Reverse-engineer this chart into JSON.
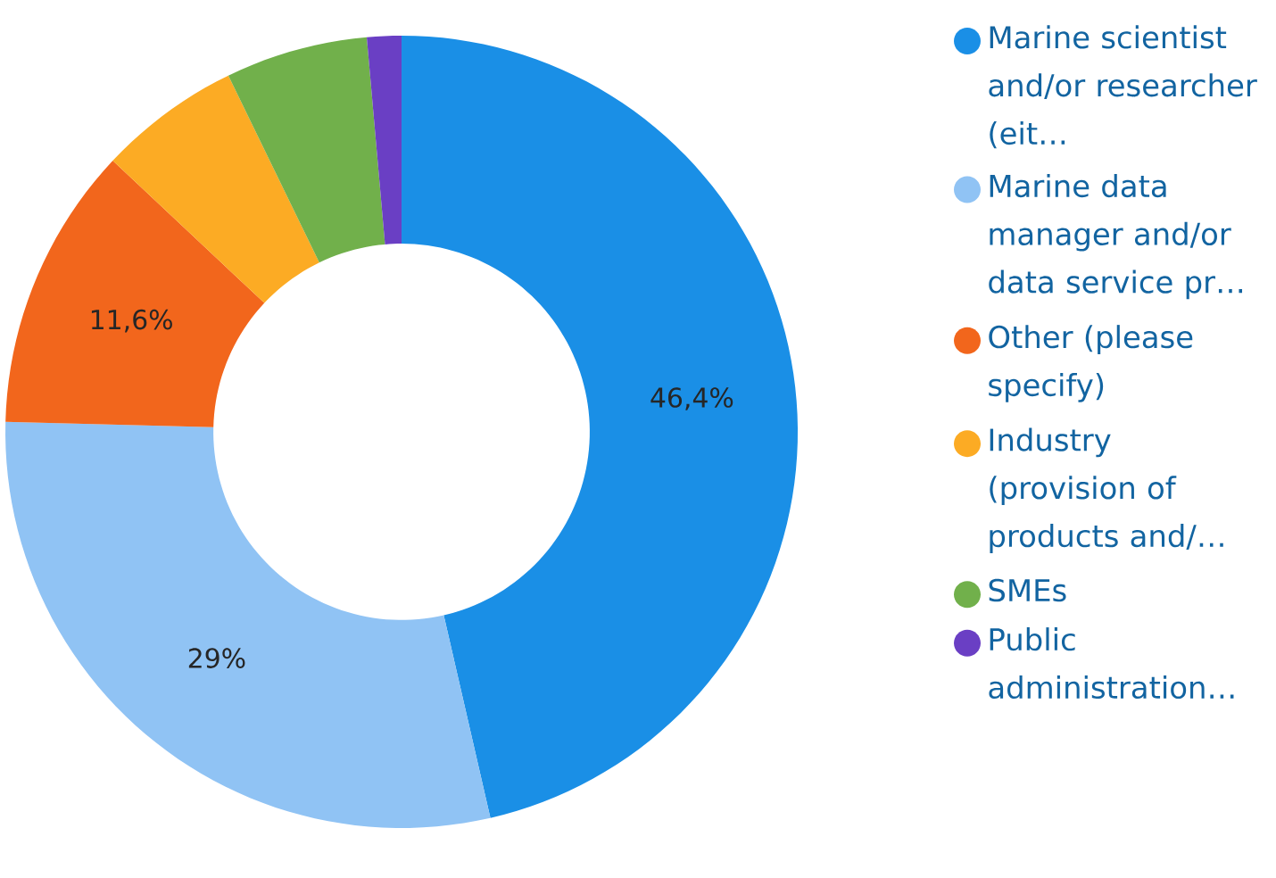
{
  "chart_data": {
    "type": "donut",
    "categories": [
      "Marine scientist and/or researcher (eit…",
      "Marine data manager and/or data service pr…",
      "Other (please specify)",
      "Industry (provision of products and/…",
      "SMEs",
      "Public administration…"
    ],
    "values": [
      46.4,
      29,
      11.6,
      5.8,
      5.8,
      1.4
    ],
    "colors": [
      "#1a8fe6",
      "#90c3f4",
      "#f2661c",
      "#fcab24",
      "#71b04b",
      "#6a3fc4"
    ],
    "value_labels": [
      "46,4%",
      "29%",
      "11,6%",
      null,
      null,
      null
    ],
    "legend": "right"
  }
}
